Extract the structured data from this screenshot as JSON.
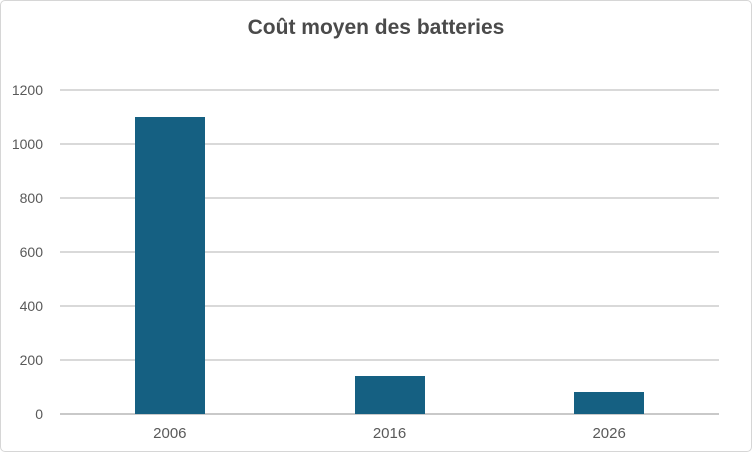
{
  "chart_data": {
    "type": "bar",
    "title": "Coût moyen des batteries",
    "categories": [
      "2006",
      "2016",
      "2026"
    ],
    "values": [
      1100,
      140,
      80
    ],
    "xlabel": "",
    "ylabel": "",
    "ylim": [
      0,
      1200
    ],
    "yticks": [
      0,
      200,
      400,
      600,
      800,
      1000,
      1200
    ],
    "grid": true,
    "legend_position": "none"
  },
  "colors": {
    "bar": "#156082",
    "gridline": "#d9d9d9",
    "axis_line": "#c9c9c9",
    "axis_text": "#595959",
    "title_text": "#4a4a4a",
    "border": "#d6d6d6",
    "background": "#ffffff"
  }
}
